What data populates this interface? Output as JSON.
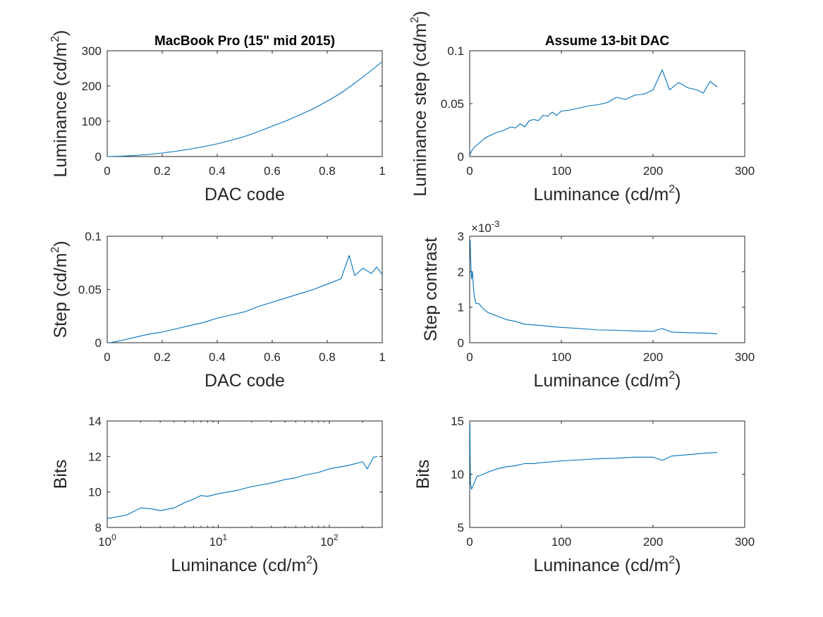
{
  "figure": {
    "line_color": "#0072BD",
    "axis_color": "#262626",
    "background": "#ffffff"
  },
  "chart_data": [
    {
      "id": "p1",
      "type": "line",
      "title": "MacBook Pro (15\" mid 2015)",
      "xlabel": "DAC code",
      "ylabel": "Luminance (cd/m²)",
      "xlim": [
        0,
        1
      ],
      "ylim": [
        0,
        300
      ],
      "xticks": [
        0,
        0.2,
        0.4,
        0.6,
        0.8,
        1
      ],
      "xtick_labels": [
        "0",
        "0.2",
        "0.4",
        "0.6",
        "0.8",
        "1"
      ],
      "yticks": [
        0,
        100,
        200,
        300
      ],
      "ytick_labels": [
        "0",
        "100",
        "200",
        "300"
      ],
      "xscale": "linear",
      "grid": false,
      "series": [
        {
          "x": [
            0,
            0.05,
            0.1,
            0.15,
            0.2,
            0.25,
            0.3,
            0.35,
            0.4,
            0.45,
            0.5,
            0.55,
            0.6,
            0.65,
            0.7,
            0.75,
            0.8,
            0.85,
            0.9,
            0.95,
            1.0
          ],
          "y": [
            0,
            0.8,
            3,
            6,
            10,
            15,
            21,
            28,
            36,
            46,
            57,
            71,
            86,
            101,
            118,
            136,
            157,
            180,
            208,
            238,
            269
          ]
        }
      ]
    },
    {
      "id": "p2",
      "type": "line",
      "title": "Assume 13-bit DAC",
      "xlabel": "Luminance (cd/m²)",
      "ylabel": "Luminance step (cd/m²)",
      "xlim": [
        0,
        300
      ],
      "ylim": [
        0,
        0.1
      ],
      "xticks": [
        0,
        100,
        200,
        300
      ],
      "xtick_labels": [
        "0",
        "100",
        "200",
        "300"
      ],
      "yticks": [
        0,
        0.05,
        0.1
      ],
      "ytick_labels": [
        "0",
        "0.05",
        "0.1"
      ],
      "xscale": "linear",
      "grid": false,
      "series": [
        {
          "x": [
            0,
            2,
            5,
            8,
            12,
            16,
            20,
            25,
            30,
            35,
            40,
            45,
            50,
            55,
            60,
            65,
            70,
            75,
            80,
            85,
            90,
            95,
            100,
            110,
            120,
            130,
            140,
            150,
            160,
            170,
            180,
            190,
            200,
            210,
            218,
            228,
            238,
            248,
            255,
            262,
            270
          ],
          "y": [
            0.001,
            0.005,
            0.009,
            0.011,
            0.014,
            0.017,
            0.019,
            0.021,
            0.023,
            0.024,
            0.026,
            0.028,
            0.027,
            0.031,
            0.028,
            0.034,
            0.035,
            0.034,
            0.039,
            0.038,
            0.042,
            0.039,
            0.043,
            0.044,
            0.046,
            0.048,
            0.049,
            0.051,
            0.056,
            0.054,
            0.058,
            0.059,
            0.063,
            0.082,
            0.063,
            0.07,
            0.065,
            0.063,
            0.06,
            0.071,
            0.066
          ]
        }
      ]
    },
    {
      "id": "p3",
      "type": "line",
      "title": "",
      "xlabel": "DAC code",
      "ylabel": "Step (cd/m²)",
      "xlim": [
        0,
        1
      ],
      "ylim": [
        0,
        0.1
      ],
      "xticks": [
        0,
        0.2,
        0.4,
        0.6,
        0.8,
        1
      ],
      "xtick_labels": [
        "0",
        "0.2",
        "0.4",
        "0.6",
        "0.8",
        "1"
      ],
      "yticks": [
        0,
        0.05,
        0.1
      ],
      "ytick_labels": [
        "0",
        "0.05",
        "0.1"
      ],
      "xscale": "linear",
      "grid": false,
      "series": [
        {
          "x": [
            0.01,
            0.05,
            0.1,
            0.15,
            0.2,
            0.25,
            0.3,
            0.35,
            0.4,
            0.45,
            0.5,
            0.55,
            0.6,
            0.65,
            0.7,
            0.75,
            0.8,
            0.85,
            0.88,
            0.9,
            0.93,
            0.96,
            0.98,
            1.0
          ],
          "y": [
            0.0,
            0.002,
            0.005,
            0.008,
            0.01,
            0.013,
            0.016,
            0.019,
            0.023,
            0.026,
            0.029,
            0.034,
            0.038,
            0.042,
            0.046,
            0.05,
            0.055,
            0.06,
            0.082,
            0.063,
            0.07,
            0.065,
            0.071,
            0.064
          ]
        }
      ]
    },
    {
      "id": "p4",
      "type": "line",
      "title": "",
      "xlabel": "Luminance (cd/m²)",
      "ylabel": "Step contrast",
      "y_exponent": "×10⁻³",
      "xlim": [
        0,
        300
      ],
      "ylim": [
        0,
        3
      ],
      "xticks": [
        0,
        100,
        200,
        300
      ],
      "xtick_labels": [
        "0",
        "100",
        "200",
        "300"
      ],
      "yticks": [
        0,
        1,
        2,
        3
      ],
      "ytick_labels": [
        "0",
        "1",
        "2",
        "3"
      ],
      "xscale": "linear",
      "grid": false,
      "series": [
        {
          "x": [
            0.5,
            1,
            2,
            3,
            4,
            5,
            7,
            10,
            15,
            20,
            30,
            40,
            50,
            60,
            70,
            80,
            90,
            100,
            120,
            140,
            160,
            180,
            200,
            210,
            220,
            240,
            260,
            270
          ],
          "y": [
            2.9,
            2.4,
            1.8,
            2.0,
            1.6,
            1.3,
            1.1,
            1.1,
            0.95,
            0.85,
            0.75,
            0.65,
            0.6,
            0.52,
            0.5,
            0.48,
            0.45,
            0.43,
            0.4,
            0.36,
            0.35,
            0.33,
            0.32,
            0.4,
            0.3,
            0.28,
            0.27,
            0.25
          ]
        }
      ]
    },
    {
      "id": "p5",
      "type": "line",
      "title": "",
      "xlabel": "Luminance (cd/m²)",
      "ylabel": "Bits",
      "xlim": [
        1,
        300
      ],
      "ylim": [
        8,
        14
      ],
      "xticks": [
        1,
        10,
        100
      ],
      "xtick_labels": [
        "10⁰",
        "10¹",
        "10²"
      ],
      "yticks": [
        8,
        10,
        12,
        14
      ],
      "ytick_labels": [
        "8",
        "10",
        "12",
        "14"
      ],
      "xscale": "log",
      "grid": false,
      "series": [
        {
          "x": [
            1,
            1.5,
            2,
            2.5,
            3,
            4,
            5,
            6,
            7,
            8,
            10,
            15,
            20,
            30,
            40,
            50,
            60,
            80,
            100,
            150,
            200,
            220,
            250,
            270
          ],
          "y": [
            8.5,
            8.7,
            9.1,
            9.05,
            8.95,
            9.1,
            9.4,
            9.6,
            9.8,
            9.75,
            9.9,
            10.1,
            10.3,
            10.5,
            10.7,
            10.8,
            10.95,
            11.1,
            11.3,
            11.5,
            11.7,
            11.3,
            11.95,
            12.0
          ]
        }
      ]
    },
    {
      "id": "p6",
      "type": "line",
      "title": "",
      "xlabel": "Luminance (cd/m²)",
      "ylabel": "Bits",
      "xlim": [
        0,
        300
      ],
      "ylim": [
        5,
        15
      ],
      "xticks": [
        0,
        100,
        200,
        300
      ],
      "xtick_labels": [
        "0",
        "100",
        "200",
        "300"
      ],
      "yticks": [
        5,
        10,
        15
      ],
      "ytick_labels": [
        "5",
        "10",
        "15"
      ],
      "xscale": "linear",
      "grid": false,
      "series": [
        {
          "x": [
            0.2,
            0.8,
            2,
            5,
            8,
            12,
            20,
            30,
            40,
            50,
            60,
            70,
            80,
            100,
            120,
            140,
            160,
            180,
            200,
            210,
            220,
            240,
            260,
            270
          ],
          "y": [
            14.8,
            9.2,
            8.6,
            9.2,
            9.8,
            9.9,
            10.2,
            10.5,
            10.7,
            10.8,
            11.0,
            11.0,
            11.1,
            11.25,
            11.35,
            11.45,
            11.5,
            11.6,
            11.6,
            11.3,
            11.7,
            11.85,
            12.0,
            12.05
          ]
        }
      ]
    }
  ]
}
